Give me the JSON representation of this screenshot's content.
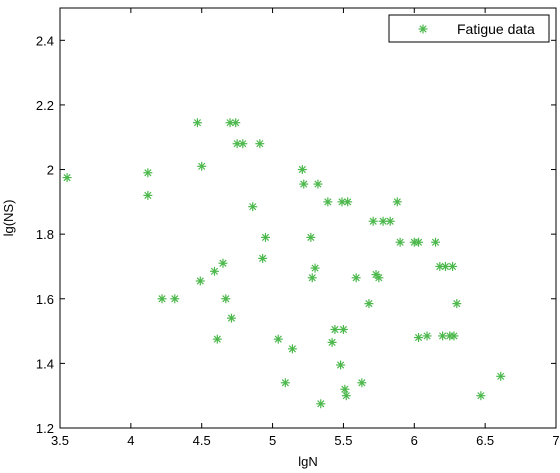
{
  "chart_data": {
    "type": "scatter",
    "title": "",
    "xlabel": "lgN",
    "ylabel": "lg(NS)",
    "xlim": [
      3.5,
      7
    ],
    "ylim": [
      1.2,
      2.5
    ],
    "xticks": [
      3.5,
      4,
      4.5,
      5,
      5.5,
      6,
      6.5,
      7
    ],
    "yticks": [
      1.2,
      1.4,
      1.6,
      1.8,
      2,
      2.2,
      2.4
    ],
    "xtick_labels": [
      "3.5",
      "4",
      "4.5",
      "5",
      "5.5",
      "6",
      "6.5",
      "7"
    ],
    "ytick_labels": [
      "1.2",
      "1.4",
      "1.6",
      "1.8",
      "2",
      "2.2",
      "2.4"
    ],
    "grid": false,
    "legend_position": "top-right",
    "marker": "asterisk",
    "color": "#4cb84c",
    "series": [
      {
        "name": "Fatigue data",
        "points": [
          [
            3.55,
            1.975
          ],
          [
            4.12,
            1.99
          ],
          [
            4.12,
            1.92
          ],
          [
            4.22,
            1.6
          ],
          [
            4.31,
            1.6
          ],
          [
            4.47,
            2.145
          ],
          [
            4.5,
            2.01
          ],
          [
            4.49,
            1.655
          ],
          [
            4.59,
            1.685
          ],
          [
            4.61,
            1.475
          ],
          [
            4.65,
            1.71
          ],
          [
            4.67,
            1.6
          ],
          [
            4.71,
            1.54
          ],
          [
            4.7,
            2.145
          ],
          [
            4.74,
            2.145
          ],
          [
            4.75,
            2.08
          ],
          [
            4.79,
            2.08
          ],
          [
            4.86,
            1.885
          ],
          [
            4.91,
            2.08
          ],
          [
            4.93,
            1.725
          ],
          [
            4.95,
            1.79
          ],
          [
            5.04,
            1.475
          ],
          [
            5.09,
            1.34
          ],
          [
            5.14,
            1.445
          ],
          [
            5.21,
            2.0
          ],
          [
            5.22,
            1.955
          ],
          [
            5.27,
            1.79
          ],
          [
            5.28,
            1.665
          ],
          [
            5.3,
            1.695
          ],
          [
            5.32,
            1.955
          ],
          [
            5.34,
            1.275
          ],
          [
            5.39,
            1.9
          ],
          [
            5.42,
            1.465
          ],
          [
            5.44,
            1.505
          ],
          [
            5.48,
            1.395
          ],
          [
            5.49,
            1.9
          ],
          [
            5.5,
            1.505
          ],
          [
            5.51,
            1.32
          ],
          [
            5.53,
            1.9
          ],
          [
            5.52,
            1.3
          ],
          [
            5.59,
            1.665
          ],
          [
            5.63,
            1.34
          ],
          [
            5.68,
            1.585
          ],
          [
            5.71,
            1.84
          ],
          [
            5.73,
            1.675
          ],
          [
            5.75,
            1.665
          ],
          [
            5.78,
            1.84
          ],
          [
            5.83,
            1.84
          ],
          [
            5.88,
            1.9
          ],
          [
            5.9,
            1.775
          ],
          [
            6.0,
            1.775
          ],
          [
            6.03,
            1.775
          ],
          [
            6.03,
            1.48
          ],
          [
            6.09,
            1.485
          ],
          [
            6.15,
            1.775
          ],
          [
            6.18,
            1.7
          ],
          [
            6.2,
            1.485
          ],
          [
            6.22,
            1.7
          ],
          [
            6.25,
            1.485
          ],
          [
            6.27,
            1.7
          ],
          [
            6.28,
            1.485
          ],
          [
            6.3,
            1.585
          ],
          [
            6.47,
            1.3
          ],
          [
            6.61,
            1.36
          ]
        ]
      }
    ]
  }
}
